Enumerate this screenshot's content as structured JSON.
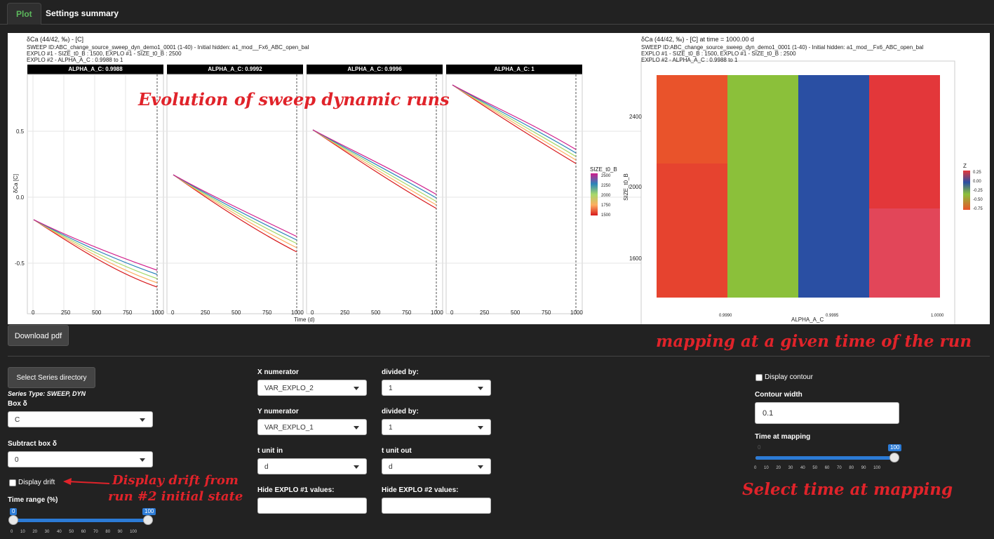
{
  "tabs": [
    {
      "label": "Plot"
    },
    {
      "label": "Settings summary"
    }
  ],
  "plot": {
    "left_title": "δCa (44/42, ‰) - [C]",
    "left_sub1": "SWEEP ID:ABC_change_source_sweep_dyn_demo1_0001 (1-40) - Initial hidden: a1_mod__Fx6_ABC_open_bal",
    "left_sub2": "EXPLO #1 - SIZE_t0_B : 1500, EXPLO #1 - SIZE_t0_B : 2500",
    "left_sub3": "EXPLO #2 - ALPHA_A_C : 0.9988 to 1",
    "strips": [
      "ALPHA_A_C: 0.9988",
      "ALPHA_A_C: 0.9992",
      "ALPHA_A_C: 0.9996",
      "ALPHA_A_C: 1"
    ],
    "y_label": "δCa [C]",
    "y_ticks": [
      "0.5",
      "0.0",
      "-0.5"
    ],
    "x_ticks": [
      "0",
      "250",
      "500",
      "750",
      "1000"
    ],
    "x_label": "Time (d)",
    "legend_title": "SIZE_t0_B",
    "legend_ticks": [
      "2500",
      "2250",
      "2000",
      "1750",
      "1500"
    ],
    "right_title": "δCa (44/42, ‰) - [C] at time = 1000.00 d",
    "right_sub1": "SWEEP ID:ABC_change_source_sweep_dyn_demo1_0001 (1-40) - Initial hidden: a1_mod__Fx6_ABC_open_bal",
    "right_sub2": "EXPLO #1 - SIZE_t0_B : 1500, EXPLO #1 - SIZE_t0_B : 2500",
    "right_sub3": "EXPLO #2 - ALPHA_A_C : 0.9988 to 1",
    "hm_y_label": "SIZE_t0_B",
    "hm_y_ticks": [
      "2400",
      "2000",
      "1600"
    ],
    "hm_x_label": "ALPHA_A_C",
    "hm_x_ticks": [
      "0.9990",
      "0.9995",
      "1.0000"
    ],
    "hm_legend_title": "Z",
    "hm_legend_ticks": [
      "0.25",
      "0.00",
      "-0.25",
      "-0.50",
      "-0.75"
    ],
    "colors": {
      "c1": "#e9532b",
      "c2": "#8bc03a",
      "c3": "#2a4fa3",
      "c4": "#e3373a"
    }
  },
  "annotations": {
    "evolution": "Evolution of sweep dynamic runs",
    "mapping": "mapping at a given time of the run",
    "drift_1": "Display drift from",
    "drift_2": "run #2 initial state",
    "select_time": "Select time at mapping"
  },
  "controls": {
    "download": "Download pdf",
    "select_series": "Select Series directory",
    "series_type": "Series Type: SWEEP, DYN",
    "box_label": "Box δ",
    "box_value": "C",
    "subtract_label": "Subtract box δ",
    "subtract_value": "0",
    "display_drift": "Display drift",
    "time_range_label": "Time range (%)",
    "time_range_min": "0",
    "time_range_max": "100",
    "time_range_ticks": "0 10 20 30 40 50 60 70 80 90 100",
    "x_num_label": "X numerator",
    "x_num_value": "VAR_EXPLO_2",
    "div1_label": "divided by:",
    "div1_value": "1",
    "y_num_label": "Y numerator",
    "y_num_value": "VAR_EXPLO_1",
    "div2_label": "divided by:",
    "div2_value": "1",
    "t_in_label": "t unit in",
    "t_in_value": "d",
    "t_out_label": "t unit out",
    "t_out_value": "d",
    "hide1_label": "Hide EXPLO #1 values:",
    "hide2_label": "Hide EXPLO #2 values:",
    "display_contour": "Display contour",
    "contour_width_label": "Contour width",
    "contour_width_value": "0.1",
    "time_mapping_label": "Time at mapping",
    "time_mapping_value": "100",
    "time_mapping_min": "0",
    "time_mapping_ticks": "0 10 20 30 40 50 60 70 80 90 100"
  }
}
